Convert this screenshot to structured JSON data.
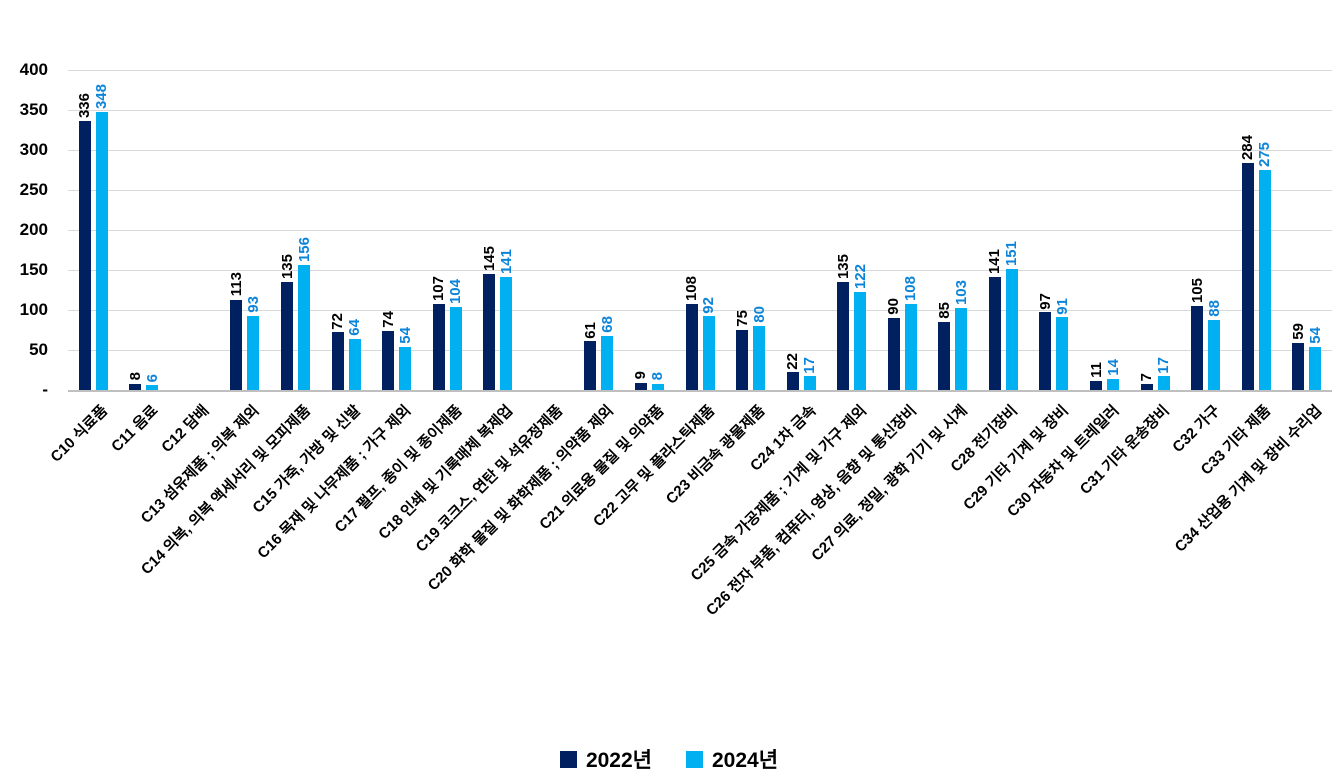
{
  "chart_data": {
    "type": "bar",
    "title": "",
    "xlabel": "",
    "ylabel": "",
    "ylim": [
      0,
      400
    ],
    "y_tick_step": 50,
    "y_tick_labels": [
      "400",
      "350",
      "300",
      "250",
      "200",
      "150",
      "100",
      "50",
      "-"
    ],
    "grid": true,
    "legend_position": "bottom",
    "gridline_color": "#d9d9d9",
    "axis_line_color": "#bfbfbf",
    "categories": [
      "C10 식료품",
      "C11 음료",
      "C12 담배",
      "C13 섬유제품 ; 의복 제외",
      "C14 의복, 의복 액세서리 및 모피제품",
      "C15 가죽, 가방 및 신발",
      "C16 목재 및 나무제품 ; 가구 제외",
      "C17 펄프, 종이 및 종이제품",
      "C18 인쇄 및 기록매체 복제업",
      "C19 코크스, 연탄 및 석유정제품",
      "C20 화학 물질 및 화학제품 ; 의약품 제외",
      "C21 의료용 물질 및 의약품",
      "C22 고무 및 플라스틱제품",
      "C23 비금속 광물제품",
      "C24 1차 금속",
      "C25 금속 가공제품 ; 기계 및 가구 제외",
      "C26 전자 부품, 컴퓨터, 영상, 음향 및 통신장비",
      "C27 의료, 정밀, 광학 기기 및 시계",
      "C28 전기장비",
      "C29 기타 기계 및 장비",
      "C30 자동차 및 트레일러",
      "C31 기타 운송장비",
      "C32 가구",
      "C33 기타 제품",
      "C34 산업용 기계 및 장비 수리업"
    ],
    "series": [
      {
        "name": "2022년",
        "color": "#002060",
        "label_color": "#000000",
        "values": [
          336,
          8,
          null,
          113,
          135,
          72,
          74,
          107,
          145,
          null,
          61,
          9,
          108,
          75,
          22,
          135,
          90,
          85,
          141,
          97,
          11,
          7,
          105,
          284,
          59
        ]
      },
      {
        "name": "2024년",
        "color": "#00b0f0",
        "label_color": "#0b84d9",
        "values": [
          348,
          6,
          null,
          93,
          156,
          64,
          54,
          104,
          141,
          null,
          68,
          8,
          92,
          80,
          17,
          122,
          108,
          103,
          151,
          91,
          14,
          17,
          88,
          275,
          54
        ]
      }
    ]
  }
}
